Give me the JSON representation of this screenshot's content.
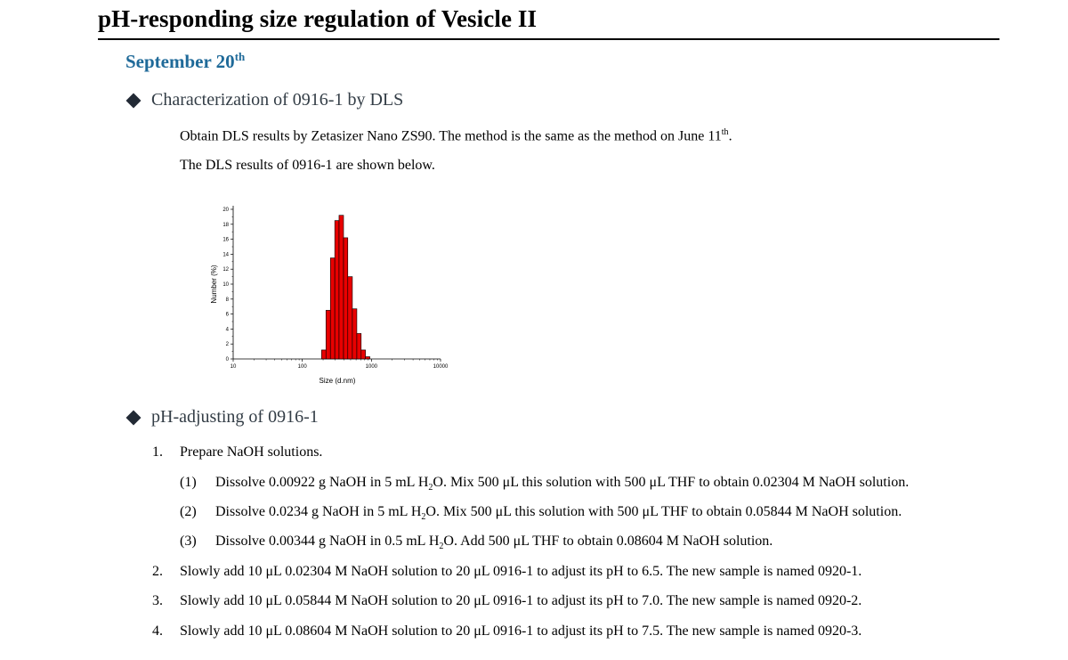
{
  "title": "pH-responding size regulation of Vesicle II",
  "date": {
    "text": "September 20",
    "sup": "th"
  },
  "section1": {
    "heading": "Characterization of 0916-1 by DLS",
    "para1_pre": "Obtain DLS results by Zetasizer Nano ZS90. The method is the same as the method on June 11",
    "para1_sup": "th",
    "para1_post": ".",
    "para2": "The DLS results of 0916-1 are shown below."
  },
  "chart_data": {
    "type": "bar",
    "xlabel": "Size (d.nm)",
    "ylabel": "Number (%)",
    "xscale": "log",
    "xlim": [
      10,
      10000
    ],
    "ylim": [
      0,
      20
    ],
    "x_ticks": [
      "10",
      "100",
      "1000",
      "10000"
    ],
    "y_ticks": [
      "0",
      "2",
      "4",
      "6",
      "8",
      "10",
      "12",
      "14",
      "16",
      "18",
      "20"
    ],
    "bar_color": "#e80000",
    "bins": [
      {
        "x0": 190,
        "x1": 220,
        "value": 1.2
      },
      {
        "x0": 220,
        "x1": 255,
        "value": 6.5
      },
      {
        "x0": 255,
        "x1": 295,
        "value": 13.5
      },
      {
        "x0": 295,
        "x1": 340,
        "value": 18.5
      },
      {
        "x0": 340,
        "x1": 395,
        "value": 19.2
      },
      {
        "x0": 395,
        "x1": 455,
        "value": 16.2
      },
      {
        "x0": 455,
        "x1": 530,
        "value": 11.0
      },
      {
        "x0": 530,
        "x1": 615,
        "value": 6.7
      },
      {
        "x0": 615,
        "x1": 710,
        "value": 3.4
      },
      {
        "x0": 710,
        "x1": 820,
        "value": 1.2
      },
      {
        "x0": 820,
        "x1": 950,
        "value": 0.3
      }
    ]
  },
  "section2": {
    "heading": "pH-adjusting of 0916-1",
    "step1": {
      "num": "1.",
      "text": "Prepare NaOH solutions.",
      "sub_items": [
        {
          "num": "(1)",
          "pre": "Dissolve 0.00922 g NaOH in 5 mL H",
          "sub": "2",
          "post": "O. Mix 500 μL this solution with 500 μL THF to obtain 0.02304 M NaOH solution."
        },
        {
          "num": "(2)",
          "pre": "Dissolve 0.0234 g NaOH in 5 mL H",
          "sub": "2",
          "post": "O. Mix 500 μL this solution with 500 μL THF to obtain 0.05844 M NaOH solution."
        },
        {
          "num": "(3)",
          "pre": "Dissolve 0.00344 g NaOH in 0.5 mL H",
          "sub": "2",
          "post": "O. Add 500 μL THF to obtain 0.08604 M NaOH solution."
        }
      ]
    },
    "step2": {
      "num": "2.",
      "text": "Slowly add 10 μL 0.02304 M NaOH solution to 20 μL 0916-1 to adjust its pH to 6.5. The new sample is named 0920-1."
    },
    "step3": {
      "num": "3.",
      "text": "Slowly add 10 μL 0.05844 M NaOH solution to 20 μL 0916-1 to adjust its pH to 7.0. The new sample is named 0920-2."
    },
    "step4": {
      "num": "4.",
      "text": "Slowly add 10 μL 0.08604 M NaOH solution to 20 μL 0916-1 to adjust its pH to 7.5. The new sample is named 0920-3."
    }
  }
}
